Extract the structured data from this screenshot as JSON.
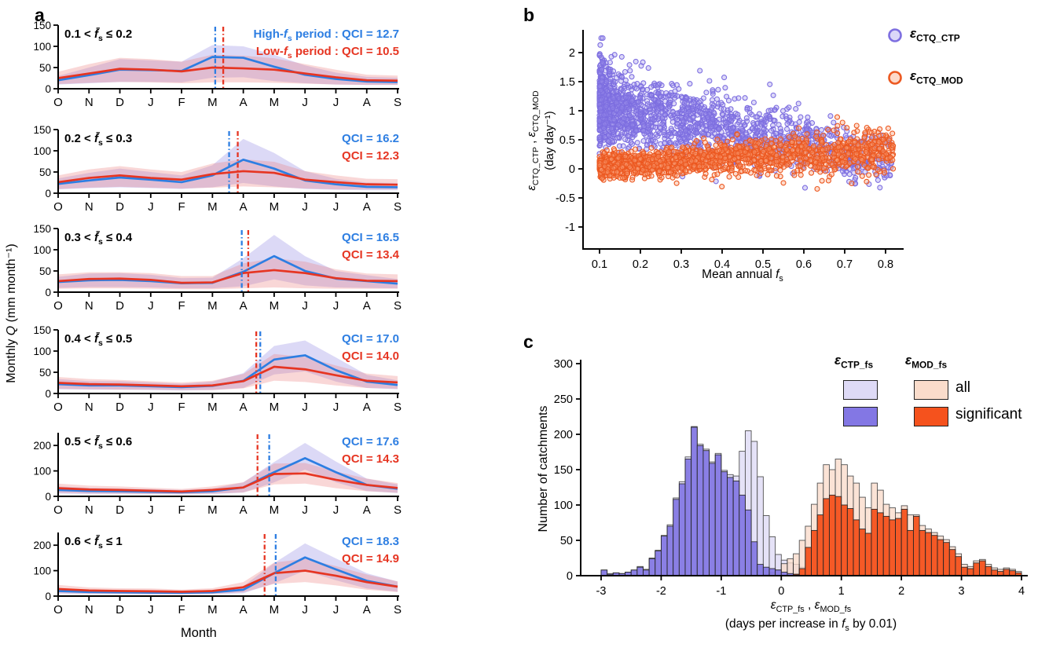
{
  "figure": {
    "background": "#ffffff"
  },
  "chart_data": {
    "panel_a": {
      "letter": "a",
      "type": "line",
      "ylabel": "Monthly *Q* (mm month⁻¹)",
      "xlabel": "Month",
      "months": [
        "O",
        "N",
        "D",
        "J",
        "F",
        "M",
        "A",
        "M",
        "J",
        "J",
        "A",
        "S"
      ],
      "line_colors": {
        "high": "#2d7ee2",
        "low": "#e63522"
      },
      "band_colors": {
        "high": "rgba(128,118,224,0.28)",
        "low": "rgba(236,122,122,0.30)"
      },
      "subplots": [
        {
          "title": "0.1 < *f̄*~s~ ≤ 0.2",
          "ylim": [
            0,
            150
          ],
          "yticks": [
            0,
            50,
            100,
            150
          ],
          "qci_high": "High-*f*~s~ period : QCI = 12.7",
          "qci_low": "Low-*f*~s~ period :  QCI = 10.5",
          "vline_high": 5.09,
          "vline_low": 5.35,
          "high": [
            20,
            32,
            45,
            44,
            42,
            75,
            73,
            52,
            33,
            23,
            17,
            16
          ],
          "high_lo": [
            10,
            13,
            16,
            16,
            15,
            26,
            27,
            18,
            13,
            10,
            9,
            9
          ],
          "high_hi": [
            30,
            50,
            70,
            67,
            64,
            103,
            100,
            80,
            55,
            38,
            28,
            26
          ],
          "low": [
            25,
            36,
            47,
            45,
            41,
            50,
            48,
            45,
            36,
            27,
            20,
            19
          ],
          "low_lo": [
            11,
            14,
            16,
            15,
            13,
            15,
            15,
            14,
            12,
            10,
            9,
            9
          ],
          "low_hi": [
            40,
            58,
            73,
            70,
            64,
            80,
            78,
            72,
            58,
            45,
            33,
            31
          ]
        },
        {
          "title": "0.2 < *f̄*~s~ ≤ 0.3",
          "ylim": [
            0,
            150
          ],
          "yticks": [
            0,
            50,
            100,
            150
          ],
          "qci_high": "QCI = 16.2",
          "qci_low": "QCI = 12.3",
          "vline_high": 5.54,
          "vline_low": 5.82,
          "high": [
            22,
            30,
            37,
            32,
            26,
            42,
            79,
            58,
            30,
            21,
            15,
            14
          ],
          "high_lo": [
            9,
            12,
            14,
            12,
            10,
            14,
            24,
            16,
            10,
            8,
            7,
            7
          ],
          "high_hi": [
            35,
            48,
            58,
            50,
            42,
            66,
            128,
            95,
            52,
            34,
            25,
            24
          ],
          "low": [
            26,
            36,
            42,
            36,
            32,
            45,
            52,
            48,
            32,
            26,
            21,
            20
          ],
          "low_lo": [
            10,
            13,
            15,
            13,
            11,
            13,
            16,
            14,
            11,
            9,
            9,
            9
          ],
          "low_hi": [
            42,
            56,
            64,
            56,
            50,
            70,
            80,
            74,
            52,
            42,
            34,
            33
          ]
        },
        {
          "title": "0.3 < *f̄*~s~ ≤ 0.4",
          "ylim": [
            0,
            150
          ],
          "yticks": [
            0,
            50,
            100,
            150
          ],
          "qci_high": "QCI = 16.5",
          "qci_low": "QCI = 13.4",
          "vline_high": 5.95,
          "vline_low": 6.16,
          "high": [
            24,
            28,
            29,
            26,
            21,
            22,
            48,
            85,
            50,
            32,
            26,
            20
          ],
          "high_lo": [
            10,
            12,
            12,
            11,
            9,
            9,
            14,
            30,
            16,
            11,
            10,
            9
          ],
          "high_hi": [
            36,
            44,
            45,
            41,
            33,
            34,
            80,
            135,
            85,
            50,
            40,
            31
          ],
          "low": [
            26,
            31,
            32,
            29,
            22,
            23,
            45,
            52,
            45,
            33,
            27,
            26
          ],
          "low_lo": [
            8,
            9,
            9,
            8,
            7,
            7,
            9,
            11,
            9,
            8,
            8,
            8
          ],
          "low_hi": [
            42,
            47,
            47,
            45,
            38,
            38,
            68,
            80,
            72,
            54,
            44,
            42
          ]
        },
        {
          "title": "0.4 < *f̄*~s~ ≤ 0.5",
          "ylim": [
            0,
            150
          ],
          "yticks": [
            0,
            50,
            100,
            150
          ],
          "qci_high": "QCI = 17.0",
          "qci_low": "QCI = 14.0",
          "vline_high": 6.55,
          "vline_low": 6.42,
          "high": [
            22,
            19,
            19,
            17,
            15,
            18,
            30,
            80,
            90,
            55,
            28,
            20
          ],
          "high_lo": [
            10,
            9,
            9,
            8,
            7,
            8,
            13,
            45,
            52,
            28,
            13,
            10
          ],
          "high_hi": [
            34,
            29,
            29,
            26,
            23,
            28,
            48,
            112,
            125,
            85,
            44,
            31
          ],
          "low": [
            25,
            22,
            21,
            19,
            17,
            19,
            29,
            63,
            57,
            43,
            30,
            26
          ],
          "low_lo": [
            11,
            10,
            9,
            9,
            8,
            8,
            12,
            30,
            27,
            19,
            13,
            11
          ],
          "low_hi": [
            39,
            34,
            32,
            29,
            26,
            30,
            46,
            93,
            86,
            66,
            47,
            41
          ]
        },
        {
          "title": "0.5 < *f̄*~s~ ≤ 0.6",
          "ylim": [
            0,
            250
          ],
          "yticks": [
            0,
            100,
            200
          ],
          "qci_high": "QCI = 17.6",
          "qci_low": "QCI = 14.3",
          "vline_high": 6.84,
          "vline_low": 6.46,
          "high": [
            25,
            21,
            20,
            18,
            16,
            20,
            35,
            95,
            150,
            95,
            45,
            30
          ],
          "high_lo": [
            11,
            9,
            9,
            8,
            7,
            9,
            15,
            55,
            105,
            55,
            21,
            13
          ],
          "high_hi": [
            39,
            33,
            31,
            28,
            25,
            31,
            55,
            135,
            210,
            137,
            70,
            47
          ],
          "low": [
            32,
            27,
            25,
            22,
            19,
            25,
            35,
            88,
            90,
            65,
            45,
            33
          ],
          "low_lo": [
            14,
            12,
            11,
            10,
            9,
            11,
            15,
            47,
            50,
            32,
            20,
            14
          ],
          "low_hi": [
            50,
            42,
            39,
            34,
            29,
            39,
            55,
            129,
            131,
            98,
            70,
            52
          ]
        },
        {
          "title": "0.6 < *f̄*~s~ ≤ 1",
          "ylim": [
            0,
            250
          ],
          "yticks": [
            0,
            100,
            200
          ],
          "qci_high": "QCI = 18.3",
          "qci_low": "QCI = 14.9",
          "vline_high": 7.05,
          "vline_low": 6.69,
          "high": [
            20,
            16,
            15,
            14,
            13,
            15,
            25,
            90,
            152,
            105,
            60,
            37
          ],
          "high_lo": [
            9,
            7,
            7,
            6,
            6,
            7,
            11,
            50,
            100,
            62,
            30,
            17
          ],
          "high_hi": [
            31,
            25,
            23,
            22,
            20,
            23,
            39,
            130,
            207,
            148,
            90,
            57
          ],
          "low": [
            28,
            22,
            20,
            19,
            17,
            20,
            35,
            90,
            100,
            80,
            55,
            37
          ],
          "low_lo": [
            12,
            10,
            9,
            8,
            8,
            9,
            15,
            48,
            55,
            42,
            25,
            16
          ],
          "low_hi": [
            44,
            34,
            31,
            30,
            26,
            31,
            55,
            132,
            146,
            118,
            85,
            58
          ]
        }
      ]
    },
    "panel_b": {
      "letter": "b",
      "type": "scatter",
      "xlabel": "Mean annual *f*~s~",
      "ylabel_line1": "*ε*~CTQ_CTP~ , *ε*~CTQ_MOD~",
      "ylabel_line2": "(day day⁻¹)",
      "xticks": [
        0.1,
        0.2,
        0.3,
        0.4,
        0.5,
        0.6,
        0.7,
        0.8
      ],
      "yticks": [
        2,
        1.5,
        1,
        0.5,
        0,
        -0.5,
        -1
      ],
      "xlim": [
        0.06,
        0.85
      ],
      "ylim": [
        -1.38,
        2.39
      ],
      "legend": [
        {
          "label": "*ε*~CTQ_CTP~",
          "stroke": "#7d6ee0",
          "fill": "rgba(151,140,235,0.35)"
        },
        {
          "label": "*ε*~CTQ_MOD~",
          "stroke": "#ec5820",
          "fill": "rgba(250,160,120,0.40)"
        }
      ],
      "scatter_gen": [
        {
          "name": "epsilon_CTQ_CTP",
          "n": 1700,
          "seed": 7,
          "x_pow": 1.9,
          "x_min": 0.1,
          "x_span": 0.72,
          "mean_a": 1.28,
          "mean_b": -1.45,
          "sd_a": 0.37,
          "sd_b": -0.21,
          "y_clip": [
            -1.3,
            2.25
          ],
          "stroke": "#7d6ee0",
          "fill": "rgba(151,140,235,0.33)"
        },
        {
          "name": "epsilon_CTQ_MOD",
          "n": 1700,
          "seed": 13,
          "x_pow": 1.5,
          "x_min": 0.1,
          "x_span": 0.72,
          "mean_a": 0.008,
          "mean_b": 0.42,
          "sd_a": 0.075,
          "sd_b": 0.15,
          "y_clip": [
            -0.9,
            1.45
          ],
          "stroke": "#ec5820",
          "fill": "rgba(250,160,120,0.38)"
        }
      ]
    },
    "panel_c": {
      "letter": "c",
      "type": "histogram",
      "ylabel": "Number of catchments",
      "xlabel_line1": "*ε*~CTP_fs~ , *ε*~MOD_fs~",
      "xlabel_line2": "(days per increase in *f*~s~ by 0.01)",
      "xticks": [
        -3,
        -2,
        -1,
        0,
        1,
        2,
        3,
        4
      ],
      "yticks": [
        0,
        50,
        100,
        150,
        200,
        250,
        300
      ],
      "bin_start": -3,
      "bin_width": 0.1,
      "series": [
        {
          "name": "ctp_all",
          "fill": "#dedaf6",
          "opacity": 0.78,
          "values": [
            8,
            3,
            4,
            3,
            5,
            8,
            13,
            9,
            25,
            36,
            57,
            72,
            110,
            133,
            168,
            211,
            186,
            179,
            161,
            173,
            149,
            143,
            141,
            176,
            205,
            190,
            140,
            85,
            55,
            30,
            22,
            18,
            16,
            12,
            8,
            4,
            0,
            0,
            0,
            0,
            0,
            0,
            0,
            0,
            0,
            0,
            0,
            0,
            0,
            0,
            0,
            0,
            0,
            0,
            0,
            0,
            0,
            0,
            0,
            0,
            0,
            0,
            0,
            0,
            0,
            0,
            0,
            0,
            0,
            0
          ]
        },
        {
          "name": "mod_all",
          "fill": "#fadccb",
          "opacity": 0.78,
          "values": [
            0,
            0,
            0,
            0,
            0,
            0,
            0,
            0,
            0,
            0,
            0,
            0,
            0,
            0,
            0,
            0,
            0,
            0,
            0,
            0,
            0,
            0,
            0,
            0,
            0,
            0,
            0,
            2,
            4,
            8,
            17,
            24,
            31,
            50,
            70,
            101,
            131,
            157,
            150,
            165,
            157,
            141,
            131,
            111,
            96,
            131,
            121,
            101,
            96,
            89,
            99,
            86,
            86,
            71,
            66,
            61,
            56,
            51,
            41,
            31,
            16,
            13,
            21,
            23,
            16,
            11,
            9,
            11,
            9,
            6
          ]
        },
        {
          "name": "ctp_sig",
          "fill": "#8377e4",
          "opacity": 0.92,
          "values": [
            8,
            2,
            4,
            3,
            5,
            8,
            12,
            8,
            24,
            35,
            56,
            70,
            108,
            130,
            165,
            210,
            184,
            177,
            159,
            171,
            147,
            139,
            134,
            114,
            93,
            48,
            16,
            12,
            10,
            8,
            5,
            3,
            2,
            0,
            0,
            0,
            0,
            0,
            0,
            0,
            0,
            0,
            0,
            0,
            0,
            0,
            0,
            0,
            0,
            0,
            0,
            0,
            0,
            0,
            0,
            0,
            0,
            0,
            0,
            0,
            0,
            0,
            0,
            0,
            0,
            0,
            0,
            0,
            0,
            0
          ]
        },
        {
          "name": "mod_sig",
          "fill": "#f5521d",
          "opacity": 0.95,
          "values": [
            0,
            0,
            0,
            0,
            0,
            0,
            0,
            0,
            0,
            0,
            0,
            0,
            0,
            0,
            0,
            0,
            0,
            0,
            0,
            0,
            0,
            0,
            0,
            0,
            0,
            0,
            0,
            0,
            0,
            0,
            0,
            0,
            2,
            10,
            40,
            64,
            86,
            109,
            114,
            112,
            100,
            95,
            79,
            66,
            60,
            94,
            89,
            84,
            79,
            81,
            94,
            64,
            84,
            64,
            61,
            57,
            51,
            47,
            37,
            27,
            12,
            10,
            18,
            21,
            13,
            8,
            6,
            9,
            7,
            4
          ]
        }
      ],
      "legend": {
        "col1_header": "*ε*~CTP_fs~",
        "col2_header": "*ε*~MOD_fs~",
        "row_labels": [
          "all",
          "significant"
        ],
        "swatches": {
          "ctp_all": "#dedaf6",
          "ctp_sig": "#8377e4",
          "mod_all": "#fadccb",
          "mod_sig": "#f5521d"
        }
      }
    }
  }
}
